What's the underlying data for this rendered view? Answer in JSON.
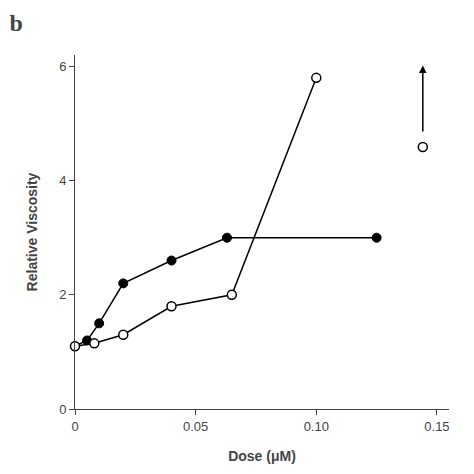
{
  "chart_data": {
    "type": "line",
    "title": "b",
    "xlabel": "Dose (μM)",
    "ylabel": "Relative Viscosity",
    "series": [
      {
        "x": [
          0.0,
          0.005,
          0.01,
          0.02,
          0.04,
          0.063,
          0.125
        ],
        "values": [
          1.1,
          1.2,
          1.5,
          2.2,
          2.6,
          3.0,
          3.0
        ],
        "color": "black",
        "marker": "filled",
        "line_style": "solid"
      },
      {
        "x": [
          0.0,
          0.008,
          0.02,
          0.04,
          0.065,
          0.1
        ],
        "values": [
          1.1,
          1.15,
          1.3,
          1.8,
          2.0,
          5.8
        ],
        "color": "black",
        "marker": "open",
        "line_style": "solid"
      }
    ],
    "xlim": [
      0,
      0.155
    ],
    "ylim": [
      0,
      6.2
    ],
    "xticks": [
      0,
      0.05,
      {
        "value": 0.1,
        "label": "0.10"
      },
      0.15
    ],
    "yticks": [
      0,
      2,
      4,
      6
    ],
    "grid": false
  }
}
